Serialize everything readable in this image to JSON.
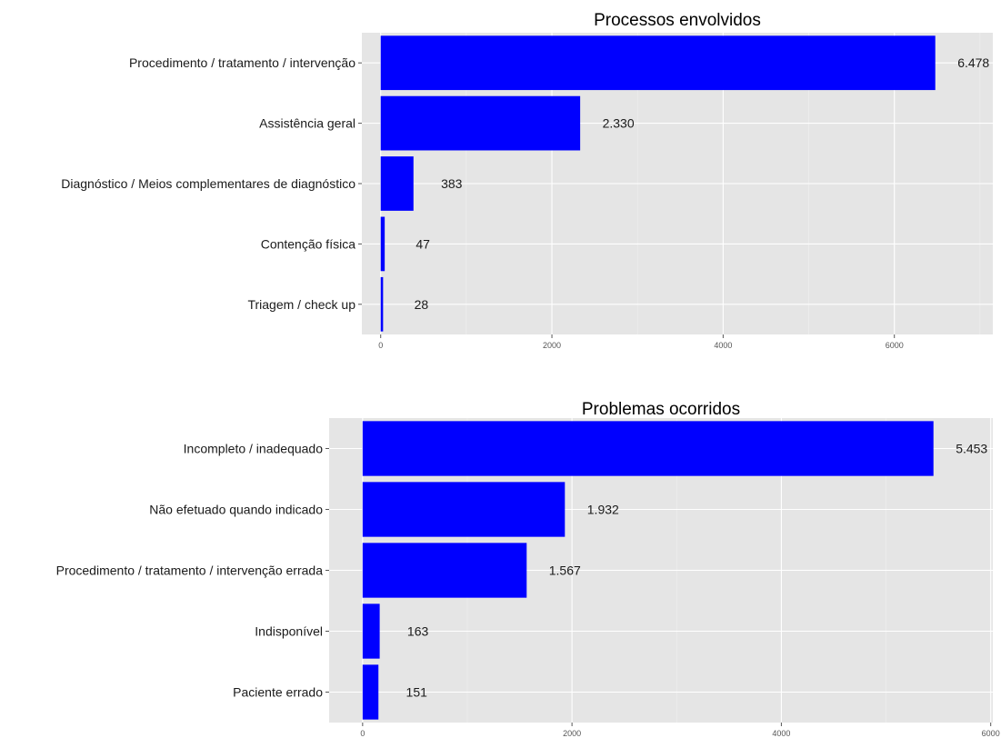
{
  "colors": {
    "bar": "#0000ff",
    "panel": "#e5e5e5",
    "grid_major": "#ffffff",
    "grid_minor": "#f0f0f0",
    "tick": "#555555"
  },
  "chart_data": [
    {
      "type": "bar",
      "orientation": "horizontal",
      "title": "Processos envolvidos",
      "xlabel": "",
      "ylabel": "",
      "categories": [
        "Procedimento / tratamento / intervenção",
        "Assistência geral",
        "Diagnóstico / Meios complementares de diagnóstico",
        "Contenção física",
        "Triagem / check up"
      ],
      "values": [
        6478,
        2330,
        383,
        47,
        28
      ],
      "value_labels": [
        "6.478",
        "2.330",
        "383",
        "47",
        "28"
      ],
      "xlim": [
        -220,
        7150
      ],
      "xticks": [
        0,
        2000,
        4000,
        6000
      ],
      "xtick_labels": [
        "0",
        "2000",
        "4000",
        "6000"
      ],
      "grid": true,
      "legend": "none"
    },
    {
      "type": "bar",
      "orientation": "horizontal",
      "title": "Problemas ocorridos",
      "xlabel": "",
      "ylabel": "",
      "categories": [
        "Incompleto / inadequado",
        "Não efetuado quando indicado",
        "Procedimento / tratamento / intervenção errada",
        "Indisponível",
        "Paciente errado"
      ],
      "values": [
        5453,
        1932,
        1567,
        163,
        151
      ],
      "value_labels": [
        "5.453",
        "1.932",
        "1.567",
        "163",
        "151"
      ],
      "xlim": [
        -320,
        6020
      ],
      "xticks": [
        0,
        2000,
        4000,
        6000
      ],
      "xtick_labels": [
        "0",
        "2000",
        "4000",
        "6000"
      ],
      "grid": true,
      "legend": "none"
    }
  ]
}
